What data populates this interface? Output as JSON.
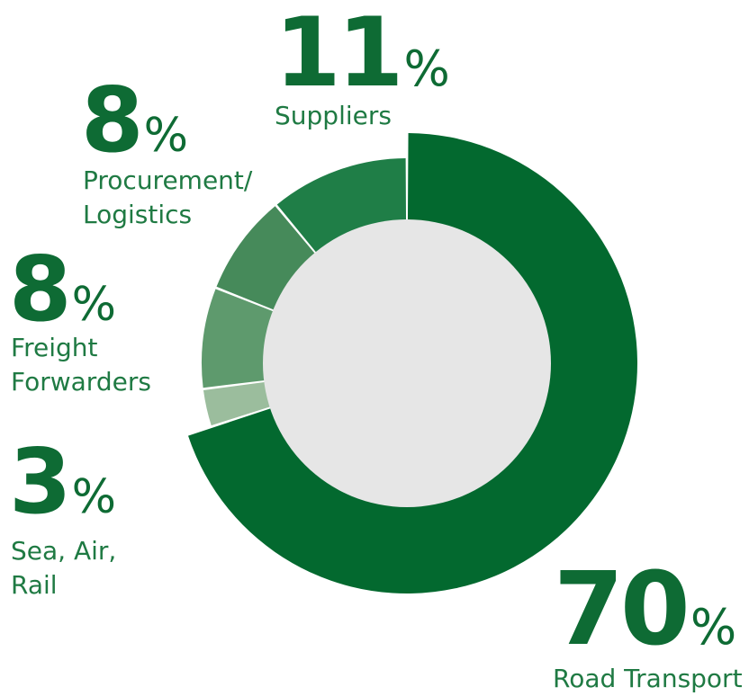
{
  "chart_data": {
    "type": "pie",
    "donut": true,
    "categories": [
      "Road Transport",
      "Sea, Air, Rail",
      "Freight Forwarders",
      "Procurement/ Logistics",
      "Suppliers"
    ],
    "values": [
      70,
      3,
      8,
      8,
      11
    ],
    "unit": "%",
    "colors": [
      "#03692f",
      "#9bbd9d",
      "#5e9a6d",
      "#468a5a",
      "#1f7e47"
    ],
    "center_color": "#e6e6e6",
    "labels": [
      {
        "value": "70",
        "unit": "%",
        "name_lines": [
          "Road Transport"
        ]
      },
      {
        "value": "3",
        "unit": "%",
        "name_lines": [
          "Sea, Air,",
          "Rail"
        ]
      },
      {
        "value": "8",
        "unit": "%",
        "name_lines": [
          "Freight",
          "Forwarders"
        ]
      },
      {
        "value": "8",
        "unit": "%",
        "name_lines": [
          "Procurement/",
          "Logistics"
        ]
      },
      {
        "value": "11",
        "unit": "%",
        "name_lines": [
          "Suppliers"
        ]
      }
    ]
  }
}
